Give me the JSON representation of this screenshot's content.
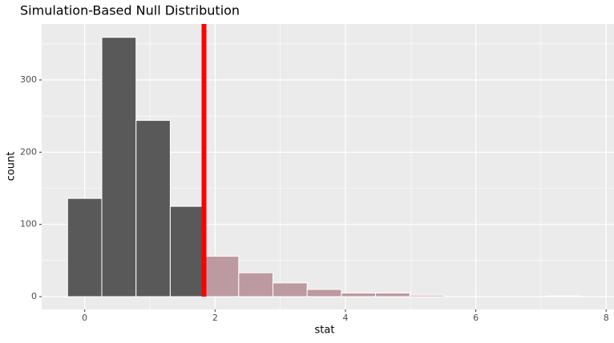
{
  "chart_data": {
    "type": "histogram",
    "title": "Simulation-Based Null Distribution",
    "x_label": "stat",
    "y_label": "count",
    "bins": [
      -0.2625,
      0.2625,
      0.7875,
      1.3125,
      1.8375,
      2.3625,
      2.8875,
      3.4125,
      3.9375,
      4.4625,
      4.9875,
      5.5125,
      6.0375,
      6.5625,
      7.0875,
      7.6125
    ],
    "values": [
      136,
      359,
      244,
      125,
      56,
      33,
      19,
      10,
      5,
      5,
      2,
      0,
      0,
      0,
      1
    ],
    "color": "#595959",
    "shade_color": "#bd9aa0",
    "obs_stat": 1.83,
    "obs_color": "#ff0000",
    "xlim": [
      -0.66,
      8.12
    ],
    "ylim": [
      -17.7,
      377.5
    ],
    "xticks": [
      0,
      2,
      4,
      6,
      8
    ],
    "yticks": [
      0,
      100,
      200,
      300
    ],
    "x_minor_grid": [
      1,
      3,
      5,
      7
    ],
    "y_minor_grid": [
      50,
      150,
      250,
      350
    ],
    "grid": true
  }
}
